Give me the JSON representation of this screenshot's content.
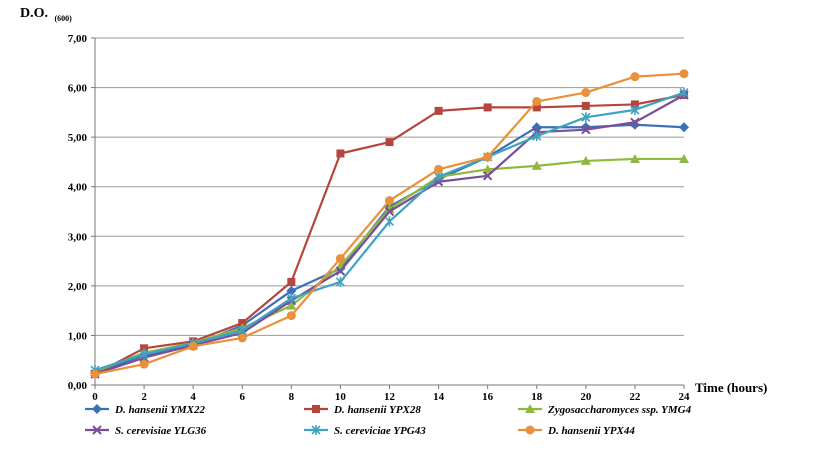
{
  "chart_data": {
    "type": "line",
    "ylabel": "D.O.",
    "ylabel_subscript": "(600)",
    "xlabel": "Time (hours)",
    "x": [
      0,
      2,
      4,
      6,
      8,
      10,
      12,
      14,
      16,
      18,
      20,
      22,
      24
    ],
    "xlim": [
      0,
      24
    ],
    "ylim": [
      0,
      7
    ],
    "yticks": [
      "0,00",
      "1,00",
      "2,00",
      "3,00",
      "4,00",
      "5,00",
      "6,00",
      "7,00"
    ],
    "xticks": [
      "0",
      "2",
      "4",
      "6",
      "8",
      "10",
      "12",
      "14",
      "16",
      "18",
      "20",
      "22",
      "24"
    ],
    "grid": "horizontal",
    "legend_position": "bottom",
    "series": [
      {
        "name": "D. hansenii YMX22",
        "color": "#3a70b5",
        "marker": "diamond",
        "values": [
          0.25,
          0.6,
          0.8,
          1.2,
          1.9,
          2.35,
          3.6,
          4.15,
          4.6,
          5.2,
          5.2,
          5.25,
          5.2
        ]
      },
      {
        "name": "D. hansenii YPX28",
        "color": "#b5453e",
        "marker": "square",
        "values": [
          0.22,
          0.74,
          0.88,
          1.25,
          2.08,
          4.67,
          4.9,
          5.53,
          5.6,
          5.6,
          5.63,
          5.66,
          5.85
        ]
      },
      {
        "name": "Zygosaccharomyces ssp. YMG4",
        "color": "#8fb83f",
        "marker": "triangle",
        "values": [
          0.27,
          0.65,
          0.85,
          1.15,
          1.6,
          2.4,
          3.55,
          4.2,
          4.35,
          4.42,
          4.52,
          4.56,
          4.56
        ]
      },
      {
        "name": "S. cerevisiae YLG36",
        "color": "#7a4f9a",
        "marker": "x",
        "values": [
          0.22,
          0.55,
          0.8,
          1.05,
          1.7,
          2.3,
          3.5,
          4.1,
          4.22,
          5.1,
          5.15,
          5.3,
          5.85
        ]
      },
      {
        "name": "S. cereviciae YPG43",
        "color": "#3da3c0",
        "marker": "asterisk",
        "values": [
          0.3,
          0.62,
          0.84,
          1.1,
          1.75,
          2.08,
          3.3,
          4.2,
          4.6,
          5.02,
          5.4,
          5.55,
          5.9
        ]
      },
      {
        "name": "D. hansenii YPX44",
        "color": "#e8913a",
        "marker": "circle",
        "values": [
          0.22,
          0.42,
          0.78,
          0.95,
          1.4,
          2.55,
          3.72,
          4.35,
          4.6,
          5.72,
          5.9,
          6.22,
          6.28
        ]
      }
    ]
  }
}
